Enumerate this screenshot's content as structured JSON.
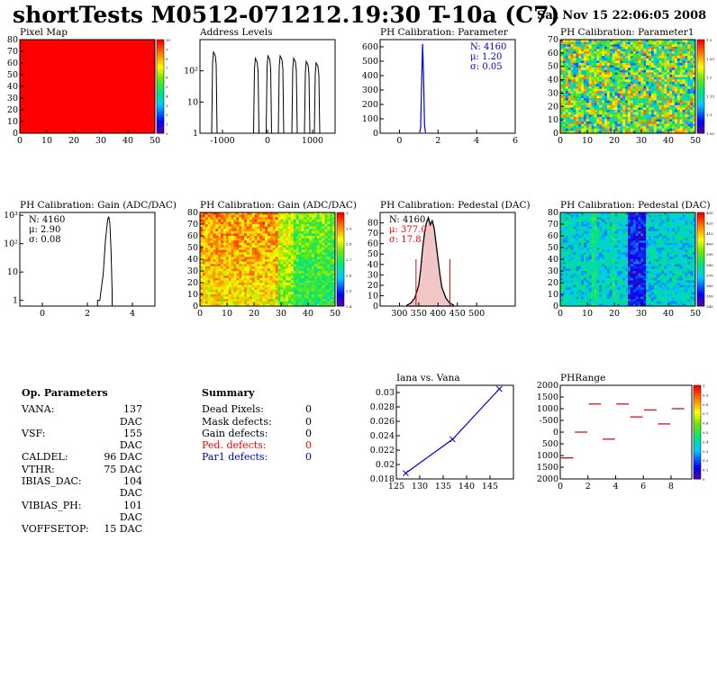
{
  "header": {
    "title": "shortTests M0512-071212.19:30 T-10a (C7)",
    "date": "Sat Nov 15 22:06:05 2008"
  },
  "panels": {
    "pixel_map": {
      "title": "Pixel Map"
    },
    "address_levels": {
      "title": "Address Levels"
    },
    "ph_param": {
      "title": "PH Calibration: Parameter",
      "stats": [
        "N: 4160",
        "μ: 1.20",
        "σ: 0.05"
      ]
    },
    "ph_param1": {
      "title": "PH Calibration: Parameter1"
    },
    "gain_hist": {
      "title": "PH Calibration: Gain (ADC/DAC)",
      "stats": [
        "N: 4160",
        "μ: 2.90",
        "σ: 0.08"
      ]
    },
    "gain_map": {
      "title": "PH Calibration: Gain (ADC/DAC)"
    },
    "ped_hist": {
      "title": "PH Calibration: Pedestal (DAC)",
      "stats": [
        "N: 4160",
        "μ: 377.0",
        "σ: 17.8"
      ]
    },
    "ped_map": {
      "title": "PH Calibration: Pedestal (DAC)"
    },
    "iana": {
      "title": "Iana vs. Vana"
    },
    "phrange": {
      "title": "PHRange"
    }
  },
  "op_params": {
    "title": "Op. Parameters",
    "rows": [
      {
        "name": "VANA:",
        "value": "137 DAC"
      },
      {
        "name": "VSF:",
        "value": "155 DAC"
      },
      {
        "name": "CALDEL:",
        "value": "96 DAC"
      },
      {
        "name": "VTHR:",
        "value": "75 DAC"
      },
      {
        "name": "IBIAS_DAC:",
        "value": "104 DAC"
      },
      {
        "name": "VIBIAS_PH:",
        "value": "101 DAC"
      },
      {
        "name": "VOFFSETOP:",
        "value": "15 DAC"
      }
    ]
  },
  "summary": {
    "title": "Summary",
    "rows": [
      {
        "name": "Dead Pixels:",
        "value": "0",
        "color": "#000000"
      },
      {
        "name": "Mask defects:",
        "value": "0",
        "color": "#000000"
      },
      {
        "name": "Gain defects:",
        "value": "0",
        "color": "#000000"
      },
      {
        "name": "Ped. defects:",
        "value": "0",
        "color": "#ff0000"
      },
      {
        "name": "Par1 defects:",
        "value": "0",
        "color": "#0000cc"
      }
    ]
  },
  "chart_data": [
    {
      "id": "pixel_map",
      "type": "heatmap",
      "title": "Pixel Map",
      "xlim": [
        0,
        52
      ],
      "ylim": [
        0,
        80
      ],
      "x_ticks": [
        "0",
        "10",
        "20",
        "30",
        "40",
        "50"
      ],
      "y_ticks": [
        "0",
        "10",
        "20",
        "30",
        "40",
        "50",
        "60",
        "70",
        "80"
      ],
      "z_ticks": [
        "0",
        "1",
        "2",
        "3",
        "4",
        "5",
        "6",
        "7",
        "8",
        "9",
        "10"
      ],
      "uniform_value": 10
    },
    {
      "id": "address_levels",
      "type": "bar",
      "title": "Address Levels",
      "yscale": "log",
      "x_ticks": [
        "-1000",
        "0",
        "1000"
      ],
      "y_ticks": [
        "1",
        "10",
        "10²"
      ],
      "peaks_x": [
        -1180,
        -250,
        30,
        300,
        600,
        880,
        1100
      ],
      "peaks_y": [
        400,
        250,
        300,
        300,
        250,
        200,
        180
      ]
    },
    {
      "id": "ph_param",
      "type": "bar",
      "title": "PH Calibration: Parameter",
      "xlim": [
        -1,
        6
      ],
      "ylim": [
        0,
        650
      ],
      "x_ticks": [
        "0",
        "2",
        "4",
        "6"
      ],
      "y_ticks": [
        "0",
        "100",
        "200",
        "300",
        "400",
        "500",
        "600"
      ],
      "x": [
        1.05,
        1.1,
        1.15,
        1.2,
        1.25,
        1.3,
        1.35
      ],
      "values": [
        5,
        40,
        350,
        620,
        400,
        60,
        5
      ]
    },
    {
      "id": "ph_param1",
      "type": "heatmap",
      "title": "PH Calibration: Parameter1",
      "xlim": [
        0,
        52
      ],
      "ylim": [
        0,
        80
      ],
      "x_ticks": [
        "0",
        "10",
        "20",
        "30",
        "40",
        "50"
      ],
      "y_ticks": [
        "0",
        "10",
        "20",
        "30",
        "40",
        "50",
        "60",
        "70"
      ],
      "z_ticks": [
        "1.05",
        "1.1",
        "1.15",
        "1.2",
        "1.25",
        "1.3"
      ]
    },
    {
      "id": "gain_hist",
      "type": "bar",
      "title": "PH Calibration: Gain (ADC/DAC)",
      "yscale": "log",
      "x_ticks": [
        "0",
        "2",
        "4"
      ],
      "y_ticks": [
        "1",
        "10",
        "10²",
        "10³"
      ],
      "x": [
        2.45,
        2.55,
        2.6,
        2.7,
        2.75,
        2.8,
        2.85,
        2.9,
        2.95,
        3.0,
        3.05,
        3.1
      ],
      "values": [
        1,
        1,
        2,
        8,
        30,
        120,
        300,
        700,
        900,
        500,
        60,
        2
      ]
    },
    {
      "id": "gain_map",
      "type": "heatmap",
      "title": "PH Calibration: Gain (ADC/DAC)",
      "xlim": [
        0,
        52
      ],
      "ylim": [
        0,
        80
      ],
      "x_ticks": [
        "0",
        "10",
        "20",
        "30",
        "40",
        "50"
      ],
      "y_ticks": [
        "0",
        "10",
        "20",
        "30",
        "40",
        "50",
        "60",
        "70",
        "80"
      ],
      "z_ticks": [
        "2.4",
        "2.5",
        "2.6",
        "2.7",
        "2.8",
        "2.9",
        "3"
      ]
    },
    {
      "id": "ped_hist",
      "type": "area",
      "title": "PH Calibration: Pedestal (DAC)",
      "xlim": [
        250,
        600
      ],
      "ylim": [
        0,
        90
      ],
      "x_ticks": [
        "300",
        "350",
        "400",
        "450",
        "500"
      ],
      "y_ticks": [
        "0",
        "10",
        "20",
        "30",
        "40",
        "50",
        "60",
        "70",
        "80"
      ],
      "x": [
        320,
        330,
        340,
        350,
        355,
        360,
        365,
        370,
        375,
        380,
        385,
        390,
        395,
        400,
        405,
        410,
        420,
        430,
        440
      ],
      "values": [
        1,
        3,
        8,
        20,
        35,
        55,
        70,
        80,
        85,
        78,
        82,
        75,
        60,
        45,
        30,
        18,
        8,
        3,
        1
      ],
      "cut_lines": [
        343,
        431
      ]
    },
    {
      "id": "ped_map",
      "type": "heatmap",
      "title": "PH Calibration: Pedestal (DAC)",
      "xlim": [
        0,
        52
      ],
      "ylim": [
        0,
        80
      ],
      "x_ticks": [
        "0",
        "10",
        "20",
        "30",
        "40",
        "50"
      ],
      "y_ticks": [
        "0",
        "10",
        "20",
        "30",
        "40",
        "50",
        "60",
        "70",
        "80"
      ],
      "z_ticks": [
        "340",
        "350",
        "360",
        "370",
        "380",
        "390",
        "400",
        "410",
        "420",
        "430"
      ]
    },
    {
      "id": "iana",
      "type": "line",
      "title": "Iana vs. Vana",
      "xlim": [
        125,
        150
      ],
      "ylim": [
        0.018,
        0.031
      ],
      "x_ticks": [
        "125",
        "130",
        "135",
        "140",
        "145"
      ],
      "y_ticks": [
        "0.018",
        "0.02",
        "0.022",
        "0.024",
        "0.026",
        "0.028",
        "0.03"
      ],
      "x": [
        127,
        137,
        147
      ],
      "y": [
        0.0188,
        0.0235,
        0.0305
      ]
    },
    {
      "id": "phrange",
      "type": "scatter",
      "title": "PHRange",
      "xlim": [
        0,
        9.5
      ],
      "ylim": [
        -2000,
        2000
      ],
      "x_ticks": [
        "0",
        "2",
        "4",
        "6",
        "8"
      ],
      "y_ticks": [
        "2000",
        "1500",
        "1000",
        "500",
        "0",
        "-500",
        "1000",
        "1500",
        "2000"
      ],
      "z_ticks": [
        "0",
        "0.1",
        "0.2",
        "0.3",
        "0.4",
        "0.5",
        "0.6",
        "0.7",
        "0.8",
        "0.9",
        "1"
      ],
      "x": [
        0.5,
        1.5,
        2.5,
        3.5,
        4.5,
        5.5,
        6.5,
        7.5,
        8.5
      ],
      "y": [
        -1100,
        0,
        1200,
        -300,
        1200,
        650,
        950,
        350,
        1000
      ]
    }
  ]
}
